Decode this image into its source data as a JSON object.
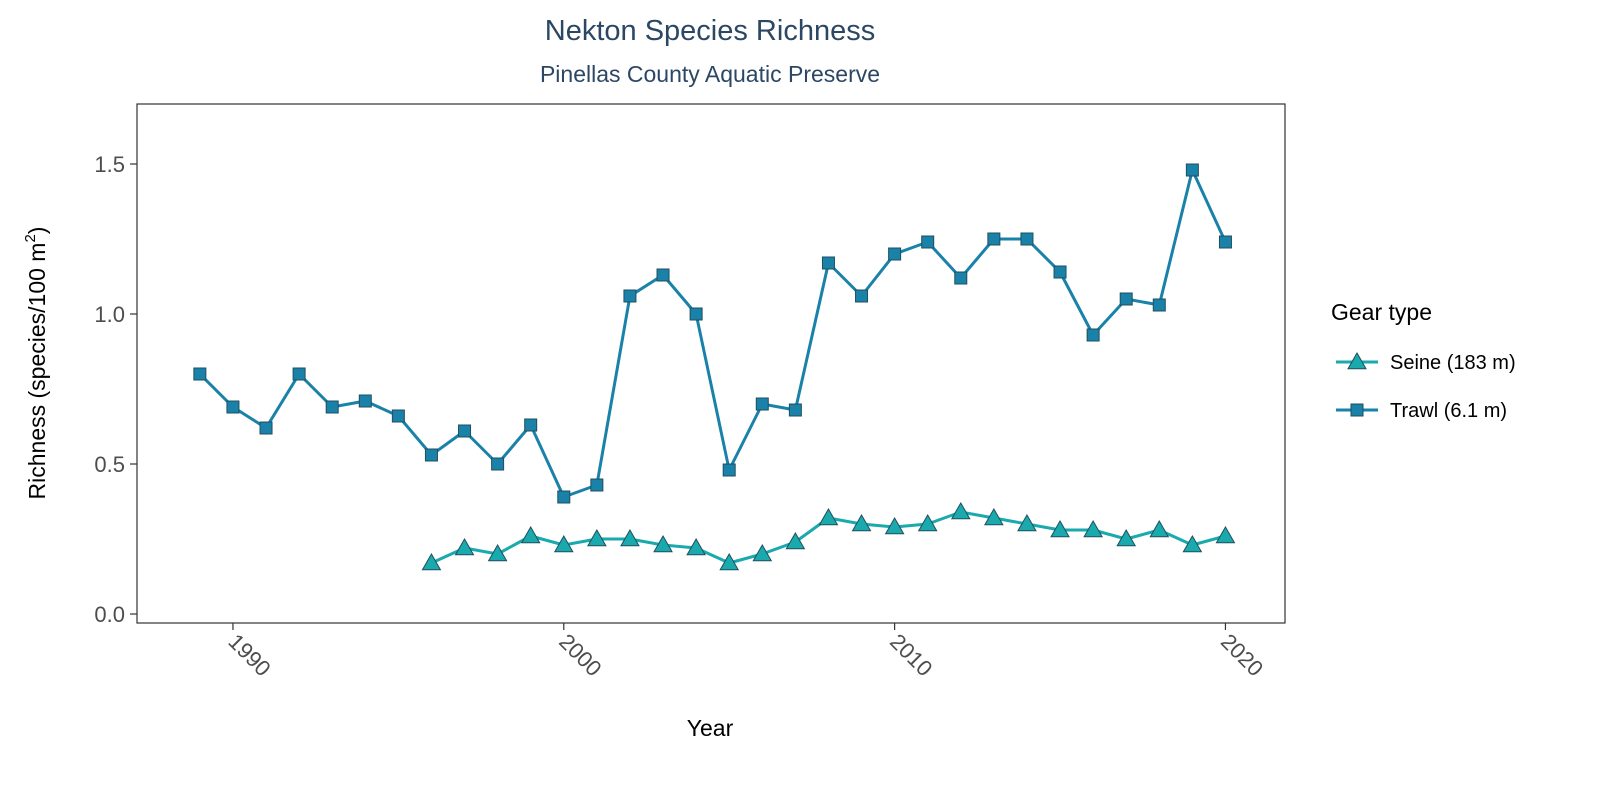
{
  "chart_data": {
    "type": "line",
    "title": "Nekton Species Richness",
    "subtitle": "Pinellas County Aquatic Preserve",
    "xlabel": "Year",
    "ylabel": {
      "prefix": "Richness (species/100 m",
      "superscript": "2",
      "suffix": ")"
    },
    "xlim": [
      1987.1,
      2021.8
    ],
    "ylim": [
      -0.03,
      1.7
    ],
    "x_ticks": [
      1990,
      2000,
      2010,
      2020
    ],
    "y_ticks": [
      {
        "value": 0.0,
        "label": "0.0"
      },
      {
        "value": 0.5,
        "label": "0.5"
      },
      {
        "value": 1.0,
        "label": "1.0"
      },
      {
        "value": 1.5,
        "label": "1.5"
      }
    ],
    "legend": {
      "title": "Gear type",
      "position": "right"
    },
    "series": [
      {
        "name": "Seine (183 m)",
        "marker": "triangle",
        "color": "#1aa9ad",
        "fill": "#1aa9ad",
        "x": [
          1996,
          1997,
          1998,
          1999,
          2000,
          2001,
          2002,
          2003,
          2004,
          2005,
          2006,
          2007,
          2008,
          2009,
          2010,
          2011,
          2012,
          2013,
          2014,
          2015,
          2016,
          2017,
          2018,
          2019,
          2020
        ],
        "values": [
          0.17,
          0.22,
          0.2,
          0.26,
          0.23,
          0.25,
          0.25,
          0.23,
          0.22,
          0.17,
          0.2,
          0.24,
          0.32,
          0.3,
          0.29,
          0.3,
          0.34,
          0.32,
          0.3,
          0.28,
          0.28,
          0.25,
          0.28,
          0.23,
          0.26
        ]
      },
      {
        "name": "Trawl (6.1 m)",
        "marker": "square",
        "color": "#1a82a9",
        "fill": "#1a82a9",
        "x": [
          1989,
          1990,
          1991,
          1992,
          1993,
          1994,
          1995,
          1996,
          1997,
          1998,
          1999,
          2000,
          2001,
          2002,
          2003,
          2004,
          2005,
          2006,
          2007,
          2008,
          2009,
          2010,
          2011,
          2012,
          2013,
          2014,
          2015,
          2016,
          2017,
          2018,
          2019,
          2020
        ],
        "values": [
          0.8,
          0.69,
          0.62,
          0.8,
          0.69,
          0.71,
          0.66,
          0.53,
          0.61,
          0.5,
          0.63,
          0.39,
          0.43,
          1.06,
          1.13,
          1.0,
          0.48,
          0.7,
          0.68,
          1.17,
          1.06,
          1.2,
          1.24,
          1.12,
          1.25,
          1.25,
          1.14,
          0.93,
          1.05,
          1.03,
          1.48,
          1.24
        ]
      }
    ],
    "colors": {
      "title": "#2c4763",
      "axis_text": "#4d4d4d",
      "axis_title": "#000000",
      "panel_border": "#333333",
      "marker_stroke": "#1f4f5e"
    }
  }
}
